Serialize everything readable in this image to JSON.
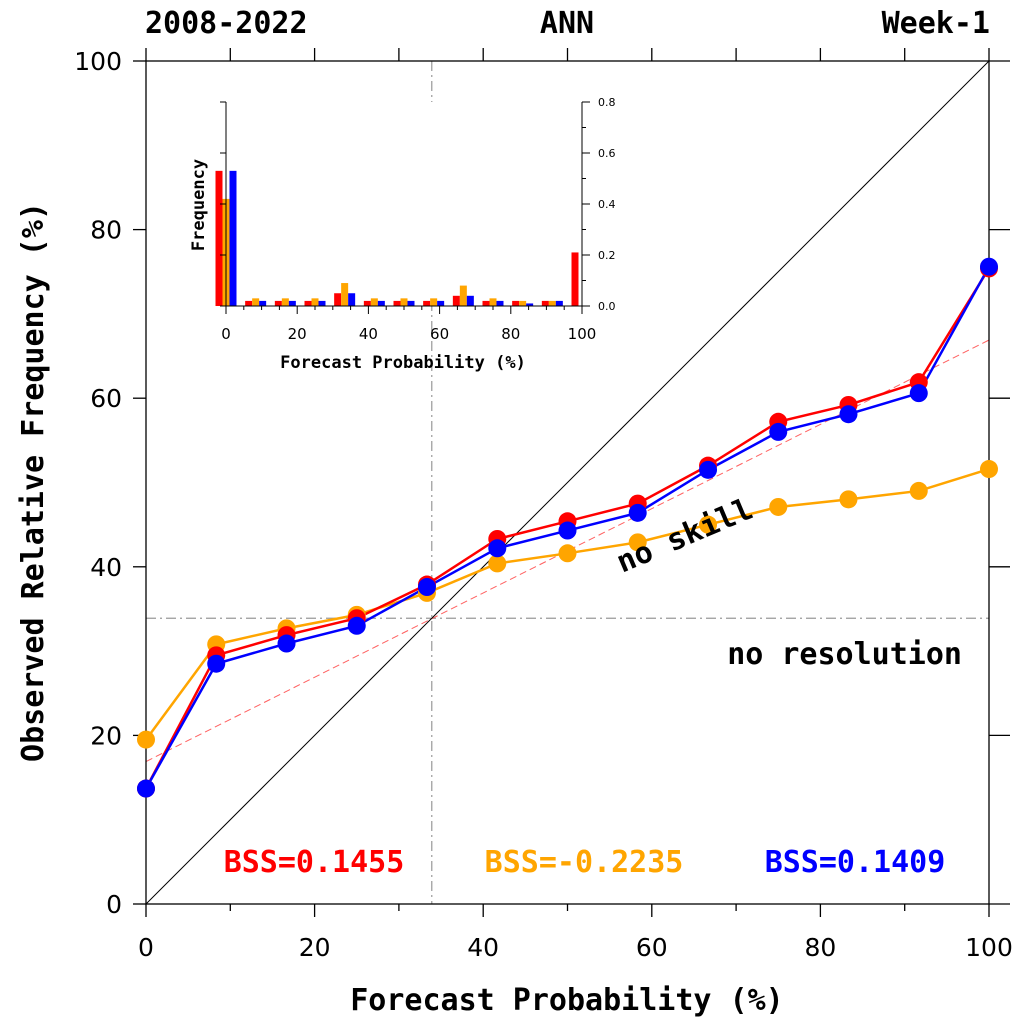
{
  "header": {
    "left": "2008-2022",
    "center": "ANN",
    "right": "Week-1"
  },
  "colors": {
    "model_a": "#ff0000",
    "model_b": "#ffa500",
    "model_c": "#0000ff",
    "axis": "#000000",
    "reference": "#999999"
  },
  "chart_data": [
    {
      "type": "line",
      "xlabel": "Forecast Probability (%)",
      "ylabel": "Observed Relative Frequency (%)",
      "xlim": [
        0,
        100
      ],
      "ylim": [
        0,
        100
      ],
      "xticks": [
        "0",
        "20",
        "40",
        "60",
        "80",
        "100"
      ],
      "yticks": [
        "0",
        "20",
        "40",
        "60",
        "80",
        "100"
      ],
      "x": [
        0,
        8.33,
        16.67,
        25,
        33.33,
        41.67,
        50,
        58.33,
        66.67,
        75,
        83.33,
        91.67,
        100
      ],
      "series": [
        {
          "color": "#ff0000",
          "values": [
            13.7,
            29.5,
            31.9,
            33.9,
            37.9,
            43.3,
            45.4,
            47.5,
            52.0,
            57.2,
            59.2,
            61.9,
            75.4
          ]
        },
        {
          "color": "#ffa500",
          "values": [
            19.5,
            30.8,
            32.7,
            34.3,
            36.9,
            40.4,
            41.6,
            42.9,
            45.0,
            47.1,
            48.0,
            49.0,
            51.6
          ]
        },
        {
          "color": "#0000ff",
          "values": [
            13.7,
            28.5,
            30.9,
            33.0,
            37.6,
            42.2,
            44.3,
            46.4,
            51.5,
            56.0,
            58.1,
            60.6,
            75.6
          ]
        }
      ],
      "reference_lines": {
        "climatology": 33.9,
        "no_skill": {
          "from": [
            0,
            16.9
          ],
          "to": [
            100,
            66.9
          ]
        },
        "perfect": {
          "from": [
            0,
            0
          ],
          "to": [
            100,
            100
          ]
        }
      },
      "annotations": {
        "no_skill": "no skill",
        "no_resolution": "no resolution",
        "bss": [
          {
            "text": "BSS=0.1455",
            "color": "#ff0000"
          },
          {
            "text": "BSS=-0.2235",
            "color": "#ffa500"
          },
          {
            "text": "BSS=0.1409",
            "color": "#0000ff"
          }
        ]
      },
      "grid": false
    },
    {
      "type": "bar",
      "title": "",
      "xlabel": "Forecast Probability (%)",
      "ylabel": "Frequency",
      "xlim": [
        0,
        100
      ],
      "ylim": [
        0,
        0.8
      ],
      "xticks": [
        "0",
        "20",
        "40",
        "60",
        "80",
        "100"
      ],
      "yticks": [
        "0.0",
        "0.2",
        "0.4",
        "0.6",
        "0.8"
      ],
      "x": [
        0,
        8.33,
        16.67,
        25,
        33.33,
        41.67,
        50,
        58.33,
        66.67,
        75,
        83.33,
        91.67,
        100
      ],
      "series": [
        {
          "color": "#ff0000",
          "values": [
            0.53,
            0.02,
            0.02,
            0.02,
            0.05,
            0.02,
            0.02,
            0.02,
            0.04,
            0.02,
            0.02,
            0.02,
            0.21
          ]
        },
        {
          "color": "#ffa500",
          "values": [
            0.42,
            0.03,
            0.03,
            0.03,
            0.09,
            0.03,
            0.03,
            0.03,
            0.08,
            0.03,
            0.02,
            0.02,
            0.0
          ]
        },
        {
          "color": "#0000ff",
          "values": [
            0.53,
            0.02,
            0.02,
            0.02,
            0.05,
            0.02,
            0.02,
            0.02,
            0.04,
            0.02,
            0.01,
            0.02,
            0.0
          ]
        }
      ],
      "grid": false
    }
  ]
}
